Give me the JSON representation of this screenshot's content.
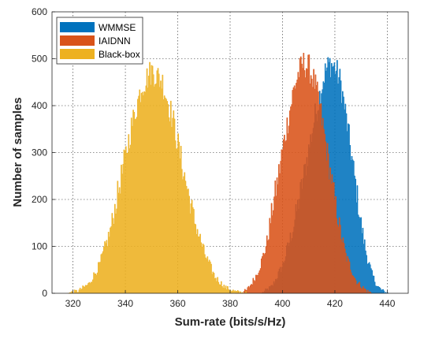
{
  "chart_data": {
    "type": "histogram",
    "xlabel": "Sum-rate (bits/s/Hz)",
    "ylabel": "Number of samples",
    "xlim": [
      312,
      448
    ],
    "ylim": [
      0,
      600
    ],
    "x_ticks": [
      320,
      340,
      360,
      380,
      400,
      420,
      440
    ],
    "y_ticks": [
      0,
      100,
      200,
      300,
      400,
      500,
      600
    ],
    "grid": true,
    "legend_position": "top-left",
    "series": [
      {
        "name": "WMMSE",
        "color": "#0072BD",
        "x": [
          392,
          396,
          400,
          404,
          408,
          412,
          414,
          416,
          418,
          420,
          422,
          424,
          426,
          428,
          430,
          432,
          434,
          436,
          438,
          440
        ],
        "y": [
          0,
          15,
          60,
          140,
          250,
          370,
          420,
          470,
          490,
          480,
          450,
          380,
          300,
          220,
          140,
          80,
          40,
          15,
          5,
          0
        ]
      },
      {
        "name": "IAIDNN",
        "color": "#D95319",
        "x": [
          382,
          386,
          388,
          390,
          392,
          394,
          396,
          398,
          400,
          402,
          404,
          406,
          408,
          410,
          412,
          414,
          416,
          418,
          420,
          422,
          424,
          428,
          432,
          434
        ],
        "y": [
          0,
          5,
          20,
          40,
          70,
          110,
          180,
          240,
          310,
          370,
          430,
          470,
          490,
          480,
          450,
          400,
          330,
          260,
          190,
          130,
          80,
          25,
          5,
          0
        ]
      },
      {
        "name": "Black-box",
        "color": "#EDB120",
        "x": [
          318,
          322,
          326,
          330,
          334,
          338,
          342,
          346,
          350,
          354,
          358,
          362,
          366,
          370,
          374,
          378,
          382,
          386
        ],
        "y": [
          0,
          5,
          20,
          60,
          130,
          240,
          350,
          440,
          475,
          450,
          370,
          260,
          160,
          85,
          35,
          12,
          3,
          0
        ]
      }
    ]
  }
}
